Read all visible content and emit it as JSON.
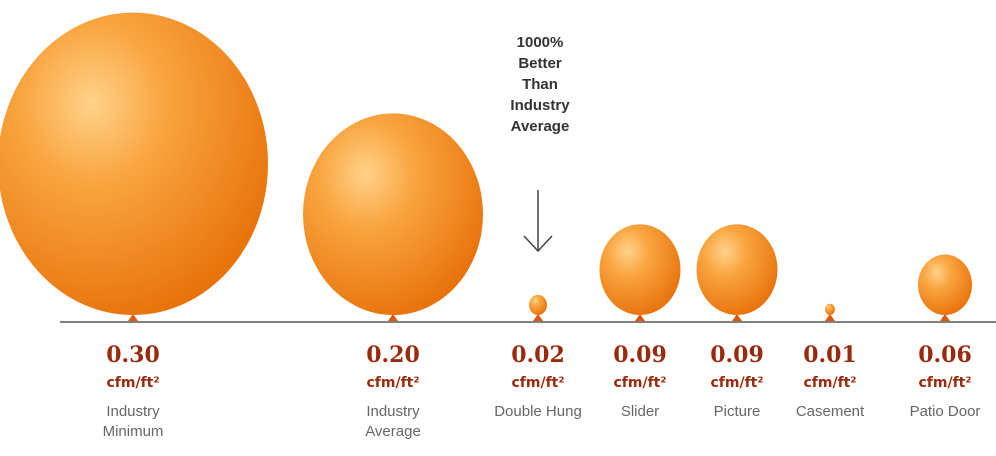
{
  "chart_data": {
    "type": "balloon",
    "annotation": "1000% Better Than Industry Average",
    "unit": "cfm/ft²",
    "categories": [
      "Industry Minimum",
      "Industry Average",
      "Double Hung",
      "Slider",
      "Picture",
      "Casement",
      "Patio Door"
    ],
    "values": [
      0.3,
      0.2,
      0.02,
      0.09,
      0.09,
      0.01,
      0.06
    ],
    "value_labels": [
      "0.30",
      "0.20",
      "0.02",
      "0.09",
      "0.09",
      "0.01",
      "0.06"
    ],
    "color": "#f7941d"
  }
}
